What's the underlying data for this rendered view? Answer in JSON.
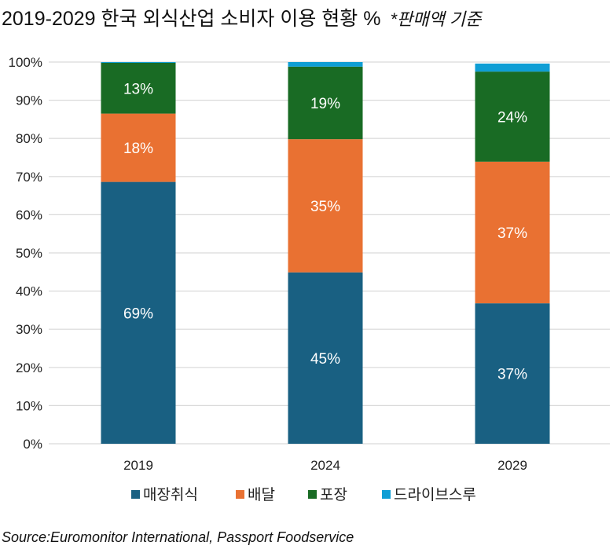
{
  "title": "2019-2029 한국 외식산업 소비자 이용 현황 %",
  "note": "*판매액 기준",
  "source": "Source:Euromonitor International, Passport Foodservice",
  "chart_data": {
    "type": "bar",
    "stacked": true,
    "categories": [
      "2019",
      "2024",
      "2029"
    ],
    "ylim": [
      0,
      100
    ],
    "yticks": [
      "0%",
      "10%",
      "20%",
      "30%",
      "40%",
      "50%",
      "60%",
      "70%",
      "80%",
      "90%",
      "100%"
    ],
    "grid": true,
    "legend": "bottom",
    "series": [
      {
        "name": "매장취식",
        "color": "#196082",
        "values": [
          68.6,
          44.9,
          36.8
        ],
        "labels": [
          "69%",
          "45%",
          "37%"
        ]
      },
      {
        "name": "배달",
        "color": "#E97132",
        "values": [
          17.9,
          34.9,
          37.1
        ],
        "labels": [
          "18%",
          "35%",
          "37%"
        ]
      },
      {
        "name": "포장",
        "color": "#196B24",
        "values": [
          13.3,
          19.0,
          23.6
        ],
        "labels": [
          "13%",
          "19%",
          "24%"
        ]
      },
      {
        "name": "드라이브스루",
        "color": "#0F9ED5",
        "values": [
          0.2,
          1.2,
          2.1
        ],
        "labels": [
          "",
          "",
          ""
        ]
      }
    ]
  }
}
